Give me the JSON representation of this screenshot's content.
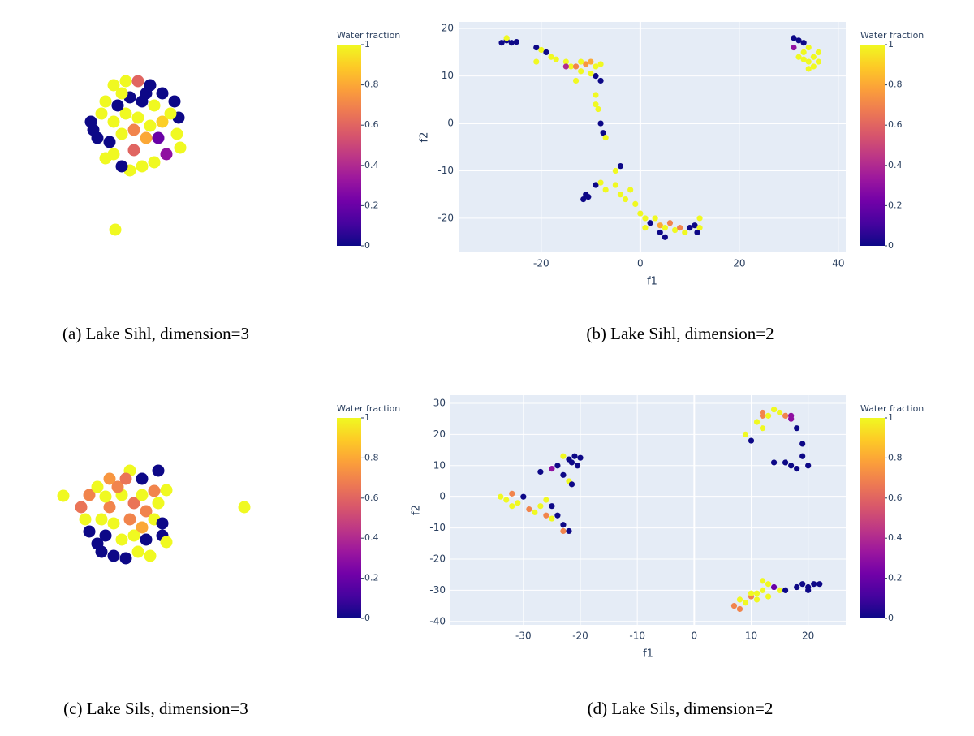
{
  "chart_data": [
    {
      "type": "scatter3d",
      "caption": "(a) Lake Sihl, dimension=3",
      "xlim": [
        0,
        250
      ],
      "ylim": [
        0,
        280
      ],
      "x": [
        65,
        70,
        62,
        80,
        90,
        105,
        120,
        135,
        150,
        165,
        170,
        168,
        172,
        155,
        140,
        125,
        110,
        100,
        90,
        85,
        100,
        115,
        130,
        120,
        105,
        95,
        110,
        125,
        140,
        150,
        135,
        90,
        80,
        115,
        145,
        130,
        100,
        160,
        75,
        92
      ],
      "values": [
        160,
        150,
        170,
        195,
        215,
        220,
        220,
        215,
        205,
        195,
        175,
        155,
        138,
        130,
        120,
        115,
        110,
        115,
        130,
        145,
        155,
        160,
        150,
        175,
        180,
        190,
        200,
        195,
        190,
        170,
        165,
        170,
        125,
        135,
        150,
        205,
        205,
        180,
        180,
        37
      ],
      "color_values": [
        0,
        0,
        0,
        1,
        1,
        1,
        0.6,
        0,
        0,
        0,
        0,
        1,
        1,
        0.3,
        1,
        1,
        1,
        0,
        1,
        0,
        1,
        0.7,
        0.8,
        1,
        1,
        0,
        0,
        0,
        1,
        0.9,
        1,
        1,
        1,
        0.6,
        0.2,
        0,
        1,
        1,
        1,
        1
      ],
      "colorbar": {
        "title": "Water fraction",
        "lim": [
          0,
          1
        ],
        "ticks": [
          0,
          0.2,
          0.4,
          0.6,
          0.8,
          1
        ]
      },
      "colorscale": [
        "#0d0887",
        "#46039f",
        "#7201a8",
        "#9c179e",
        "#bd3786",
        "#d8576b",
        "#ed7953",
        "#fb9f3a",
        "#fdca26",
        "#f0f921"
      ]
    },
    {
      "type": "scatter",
      "caption": "(b) Lake Sihl, dimension=2",
      "xlabel": "f1",
      "ylabel": "f2",
      "grid": true,
      "xlim": [
        -36.7,
        41.5
      ],
      "ylim": [
        -27.2,
        21.4
      ],
      "xticks": [
        -20,
        0,
        20,
        40
      ],
      "yticks": [
        -20,
        -10,
        0,
        10,
        20
      ],
      "x": [
        -27,
        -26,
        -28,
        -27,
        -25,
        -21,
        -20,
        -19,
        -21,
        -18,
        -17,
        -15,
        -14,
        -13,
        -12,
        -11,
        -10,
        -9,
        -8,
        -9,
        -8,
        -10,
        -13,
        -15,
        -12,
        -9,
        -8.5,
        -8,
        -7.5,
        -7,
        -9,
        31,
        32,
        33,
        31,
        34,
        33,
        35,
        34,
        36,
        35,
        33,
        32,
        36,
        34,
        -4,
        -5,
        -11,
        -11.5,
        -10.5,
        -9,
        -8,
        -7,
        -5,
        -4,
        -3,
        -2,
        -1,
        0,
        1,
        2,
        3,
        4,
        5,
        6,
        7,
        8,
        9,
        10,
        11,
        12,
        12,
        11.5,
        4,
        5,
        1
      ],
      "values": [
        17.5,
        17,
        17,
        18,
        17.2,
        16,
        15.5,
        15,
        13,
        14,
        13.5,
        13,
        12,
        12,
        11,
        12.5,
        13,
        12,
        12.5,
        10,
        9,
        10.5,
        9,
        12,
        13,
        6,
        3,
        0,
        -2,
        -3,
        4,
        18,
        17.5,
        17,
        16,
        16,
        15,
        14,
        13,
        13,
        12,
        13.5,
        14,
        15,
        11.5,
        -9,
        -10,
        -15,
        -16,
        -15.5,
        -13,
        -12.5,
        -14,
        -13,
        -15,
        -16,
        -14,
        -17,
        -19,
        -20,
        -21,
        -20,
        -21.5,
        -22,
        -21,
        -22.5,
        -22,
        -23,
        -22,
        -21.5,
        -22,
        -20,
        -23,
        -23,
        -24,
        -22
      ],
      "color_values": [
        0,
        0,
        0,
        1,
        0,
        0,
        1,
        0,
        1,
        1,
        1,
        1,
        1,
        0.7,
        1,
        0.75,
        0.8,
        1,
        1,
        0,
        0,
        1,
        1,
        0.4,
        1,
        1,
        1,
        0,
        0,
        1,
        1,
        0,
        0,
        0,
        0.3,
        1,
        1,
        1,
        1,
        1,
        1,
        1,
        1,
        1,
        1,
        0,
        1,
        0,
        0,
        0,
        0,
        1,
        1,
        1,
        1,
        1,
        1,
        1,
        1,
        1,
        0,
        1,
        0.8,
        1,
        0.7,
        1,
        0.7,
        1,
        0,
        0,
        1,
        1,
        0,
        0,
        0,
        1
      ],
      "colorbar": {
        "title": "Water fraction",
        "lim": [
          0,
          1
        ],
        "ticks": [
          0,
          0.2,
          0.4,
          0.6,
          0.8,
          1
        ]
      },
      "colorscale": [
        "#0d0887",
        "#46039f",
        "#7201a8",
        "#9c179e",
        "#bd3786",
        "#d8576b",
        "#ed7953",
        "#fb9f3a",
        "#fdca26",
        "#f0f921"
      ]
    },
    {
      "type": "scatter3d",
      "caption": "(c) Lake Sils, dimension=3",
      "xlim": [
        0,
        250
      ],
      "ylim": [
        0,
        280
      ],
      "x": [
        28,
        251,
        155,
        50,
        60,
        70,
        85,
        110,
        125,
        140,
        145,
        130,
        115,
        100,
        85,
        75,
        90,
        110,
        125,
        140,
        150,
        155,
        130,
        115,
        100,
        80,
        70,
        75,
        90,
        105,
        120,
        135,
        60,
        95,
        80,
        55,
        145,
        105,
        150,
        125
      ],
      "values": [
        169,
        155,
        176,
        155,
        170,
        180,
        190,
        200,
        190,
        175,
        160,
        150,
        160,
        170,
        155,
        140,
        135,
        140,
        130,
        140,
        120,
        112,
        115,
        120,
        115,
        120,
        110,
        100,
        95,
        92,
        100,
        95,
        125,
        180,
        168,
        140,
        200,
        190,
        135,
        170
      ],
      "color_values": [
        1,
        1,
        1,
        0.65,
        0.7,
        1,
        0.75,
        1,
        0,
        0.7,
        1,
        0.7,
        0.65,
        1,
        0.7,
        1,
        1,
        0.7,
        0.8,
        1,
        0,
        1,
        0,
        1,
        1,
        0,
        0,
        0,
        0,
        0,
        1,
        1,
        0,
        0.7,
        1,
        1,
        0,
        0.65,
        0,
        1
      ],
      "colorbar": {
        "title": "Water fraction",
        "lim": [
          0,
          1
        ],
        "ticks": [
          0,
          0.2,
          0.4,
          0.6,
          0.8,
          1
        ]
      },
      "colorscale": [
        "#0d0887",
        "#46039f",
        "#7201a8",
        "#9c179e",
        "#bd3786",
        "#d8576b",
        "#ed7953",
        "#fb9f3a",
        "#fdca26",
        "#f0f921"
      ]
    },
    {
      "type": "scatter",
      "caption": "(d) Lake Sils, dimension=2",
      "xlabel": "f1",
      "ylabel": "f2",
      "grid": true,
      "xlim": [
        -42.8,
        26.6
      ],
      "ylim": [
        -41.1,
        32.6
      ],
      "xticks": [
        -30,
        -20,
        -10,
        0,
        10,
        20
      ],
      "yticks": [
        -40,
        -30,
        -20,
        -10,
        0,
        10,
        20,
        30
      ],
      "x": [
        -22,
        -21,
        -20,
        -21.5,
        -20.5,
        -23,
        -24,
        -25,
        -27,
        -22,
        -23,
        -21.5,
        -34,
        -33,
        -32,
        -31,
        -30,
        -29,
        -28,
        -27,
        -26,
        -25,
        -24,
        -23,
        -22,
        -23,
        -25,
        -26,
        -32,
        12,
        13,
        14,
        15,
        16,
        17,
        18,
        19,
        19,
        20,
        18,
        17,
        16,
        14,
        12,
        11,
        9,
        10,
        12,
        17,
        7,
        8,
        9,
        10,
        11,
        12,
        13,
        12,
        14,
        15,
        16,
        18,
        19,
        20,
        21,
        22,
        20,
        10,
        8,
        13,
        11
      ],
      "values": [
        12,
        13,
        12.5,
        11,
        10,
        13,
        10,
        9,
        8,
        5,
        7,
        4,
        0,
        -1,
        1,
        -2,
        0,
        -4,
        -5,
        -3,
        -6,
        -7,
        -6,
        -9,
        -11,
        -11,
        -3,
        -1,
        -3,
        27,
        26,
        28,
        27,
        26,
        25,
        22,
        17,
        13,
        10,
        9,
        10,
        11,
        11,
        22,
        24,
        20,
        18,
        26,
        26,
        -35,
        -33,
        -34,
        -32,
        -31,
        -30,
        -28,
        -27,
        -29,
        -30,
        -30,
        -29,
        -28,
        -29,
        -28,
        -28,
        -30,
        -31,
        -36,
        -32,
        -33
      ],
      "color_values": [
        0,
        0,
        0,
        0,
        0,
        1,
        0,
        0.3,
        0,
        1,
        0,
        0,
        1,
        1,
        0.7,
        1,
        0,
        0.7,
        1,
        1,
        0.7,
        1,
        0,
        0,
        0,
        0.7,
        0,
        1,
        1,
        0.7,
        1,
        1,
        1,
        0.7,
        0.3,
        0,
        0,
        0,
        0,
        0,
        0,
        0,
        0,
        1,
        1,
        1,
        0,
        0.7,
        0.3,
        0.7,
        1,
        1,
        0.7,
        1,
        1,
        1,
        1,
        0.2,
        1,
        0,
        0,
        0,
        0,
        0,
        0,
        0,
        1,
        0.7,
        1,
        1
      ],
      "colorbar": {
        "title": "Water fraction",
        "lim": [
          0,
          1
        ],
        "ticks": [
          0,
          0.2,
          0.4,
          0.6,
          0.8,
          1
        ]
      },
      "colorscale": [
        "#0d0887",
        "#46039f",
        "#7201a8",
        "#9c179e",
        "#bd3786",
        "#d8576b",
        "#ed7953",
        "#fb9f3a",
        "#fdca26",
        "#f0f921"
      ]
    }
  ]
}
